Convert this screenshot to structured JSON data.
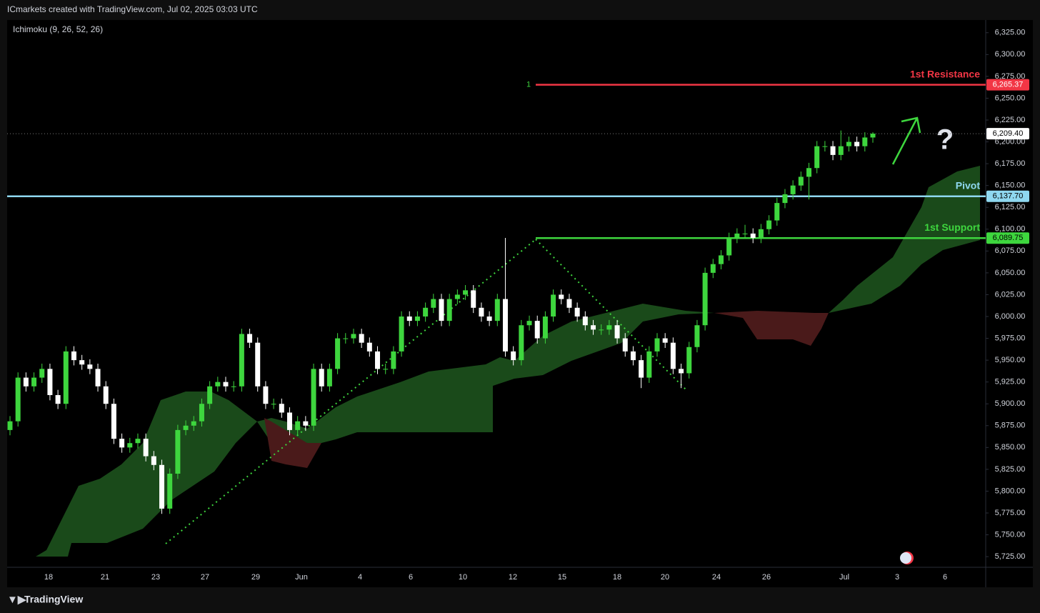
{
  "header": "ICmarkets created with TradingView.com, Jul 02, 2025 03:03 UTC",
  "footer": "TradingView",
  "chart_data": {
    "type": "candlestick",
    "indicator": "Ichimoku (9, 26, 52, 26)",
    "up_color": "#3ed63e",
    "down_color": "#ffffff",
    "ylim": [
      5712,
      6342
    ],
    "yticks": [
      {
        "value": 6325,
        "label": "6,325.00"
      },
      {
        "value": 6300,
        "label": "6,300.00"
      },
      {
        "value": 6275,
        "label": "6,275.00"
      },
      {
        "value": 6250,
        "label": "6,250.00"
      },
      {
        "value": 6225,
        "label": "6,225.00"
      },
      {
        "value": 6200,
        "label": "6,200.00"
      },
      {
        "value": 6175,
        "label": "6,175.00"
      },
      {
        "value": 6150,
        "label": "6,150.00"
      },
      {
        "value": 6125,
        "label": "6,125.00"
      },
      {
        "value": 6100,
        "label": "6,100.00"
      },
      {
        "value": 6075,
        "label": "6,075.00"
      },
      {
        "value": 6050,
        "label": "6,050.00"
      },
      {
        "value": 6025,
        "label": "6,025.00"
      },
      {
        "value": 6000,
        "label": "6,000.00"
      },
      {
        "value": 5975,
        "label": "5,975.00"
      },
      {
        "value": 5950,
        "label": "5,950.00"
      },
      {
        "value": 5925,
        "label": "5,925.00"
      },
      {
        "value": 5900,
        "label": "5,900.00"
      },
      {
        "value": 5875,
        "label": "5,875.00"
      },
      {
        "value": 5850,
        "label": "5,850.00"
      },
      {
        "value": 5825,
        "label": "5,825.00"
      },
      {
        "value": 5800,
        "label": "5,800.00"
      },
      {
        "value": 5775,
        "label": "5,775.00"
      },
      {
        "value": 5750,
        "label": "5,750.00"
      },
      {
        "value": 5725,
        "label": "5,725.00"
      }
    ],
    "xlabels": [
      "18",
      "21",
      "23",
      "27",
      "29",
      "Jun",
      "4",
      "6",
      "10",
      "12",
      "15",
      "18",
      "20",
      "24",
      "26",
      "Jul",
      "3",
      "6"
    ],
    "levels": [
      {
        "name": "1st Resistance",
        "value": 6265.37,
        "label": "6,265.37",
        "color": "#f23645",
        "marker": "1"
      },
      {
        "name": "Pivot",
        "value": 6137.7,
        "label": "6,137.70",
        "color": "#8fd8f0"
      },
      {
        "name": "1st Support",
        "value": 6089.75,
        "label": "6,089.75",
        "color": "#3ed63e"
      }
    ],
    "last": {
      "value": 6209.4,
      "label": "6,209.40"
    },
    "annotation": "?",
    "candles": [
      [
        5870,
        5886,
        5864,
        5880
      ],
      [
        5880,
        5936,
        5874,
        5930
      ],
      [
        5930,
        5936,
        5914,
        5920
      ],
      [
        5920,
        5936,
        5914,
        5930
      ],
      [
        5930,
        5946,
        5924,
        5940
      ],
      [
        5940,
        5946,
        5904,
        5910
      ],
      [
        5910,
        5916,
        5894,
        5900
      ],
      [
        5900,
        5966,
        5894,
        5960
      ],
      [
        5960,
        5966,
        5944,
        5950
      ],
      [
        5950,
        5956,
        5939,
        5945
      ],
      [
        5945,
        5951,
        5934,
        5940
      ],
      [
        5940,
        5946,
        5914,
        5920
      ],
      [
        5920,
        5926,
        5894,
        5900
      ],
      [
        5900,
        5906,
        5854,
        5860
      ],
      [
        5860,
        5866,
        5844,
        5850
      ],
      [
        5850,
        5861,
        5844,
        5855
      ],
      [
        5855,
        5866,
        5849,
        5860
      ],
      [
        5860,
        5866,
        5834,
        5840
      ],
      [
        5840,
        5846,
        5824,
        5830
      ],
      [
        5830,
        5836,
        5774,
        5780
      ],
      [
        5780,
        5826,
        5774,
        5820
      ],
      [
        5820,
        5876,
        5814,
        5870
      ],
      [
        5870,
        5881,
        5864,
        5875
      ],
      [
        5875,
        5886,
        5869,
        5880
      ],
      [
        5880,
        5906,
        5874,
        5900
      ],
      [
        5900,
        5926,
        5894,
        5920
      ],
      [
        5920,
        5931,
        5914,
        5925
      ],
      [
        5925,
        5931,
        5914,
        5920
      ],
      [
        5920,
        5926,
        5914,
        5920
      ],
      [
        5920,
        5986,
        5914,
        5980
      ],
      [
        5980,
        5986,
        5964,
        5970
      ],
      [
        5970,
        5976,
        5914,
        5920
      ],
      [
        5920,
        5926,
        5894,
        5900
      ],
      [
        5900,
        5906,
        5894,
        5900
      ],
      [
        5900,
        5906,
        5884,
        5890
      ],
      [
        5890,
        5896,
        5864,
        5870
      ],
      [
        5870,
        5886,
        5864,
        5880
      ],
      [
        5880,
        5886,
        5869,
        5875
      ],
      [
        5875,
        5946,
        5869,
        5940
      ],
      [
        5940,
        5946,
        5914,
        5920
      ],
      [
        5920,
        5946,
        5914,
        5940
      ],
      [
        5940,
        5981,
        5934,
        5975
      ],
      [
        5975,
        5981,
        5969,
        5975
      ],
      [
        5975,
        5986,
        5969,
        5980
      ],
      [
        5980,
        5986,
        5964,
        5970
      ],
      [
        5970,
        5976,
        5954,
        5960
      ],
      [
        5960,
        5966,
        5934,
        5940
      ],
      [
        5940,
        5946,
        5934,
        5940
      ],
      [
        5940,
        5966,
        5934,
        5960
      ],
      [
        5960,
        6006,
        5954,
        6000
      ],
      [
        6000,
        6006,
        5989,
        5995
      ],
      [
        5995,
        6006,
        5989,
        6000
      ],
      [
        6000,
        6016,
        5994,
        6010
      ],
      [
        6010,
        6026,
        6004,
        6020
      ],
      [
        6020,
        6026,
        5989,
        5995
      ],
      [
        5995,
        6026,
        5989,
        6020
      ],
      [
        6020,
        6031,
        6014,
        6025
      ],
      [
        6025,
        6036,
        6019,
        6030
      ],
      [
        6030,
        6036,
        6004,
        6010
      ],
      [
        6010,
        6016,
        5994,
        6000
      ],
      [
        6000,
        6006,
        5989,
        5995
      ],
      [
        5995,
        6026,
        5989,
        6020
      ],
      [
        6020,
        6090,
        5954,
        5960
      ],
      [
        5960,
        5966,
        5944,
        5950
      ],
      [
        5950,
        5996,
        5944,
        5990
      ],
      [
        5990,
        6001,
        5984,
        5995
      ],
      [
        5995,
        6001,
        5969,
        5975
      ],
      [
        5975,
        6006,
        5969,
        6000
      ],
      [
        6000,
        6031,
        5994,
        6025
      ],
      [
        6025,
        6031,
        6014,
        6020
      ],
      [
        6020,
        6026,
        6004,
        6010
      ],
      [
        6010,
        6016,
        5994,
        6000
      ],
      [
        6000,
        6006,
        5984,
        5990
      ],
      [
        5990,
        5996,
        5979,
        5985
      ],
      [
        5985,
        5991,
        5979,
        5985
      ],
      [
        5985,
        5996,
        5979,
        5990
      ],
      [
        5990,
        5996,
        5969,
        5975
      ],
      [
        5975,
        5981,
        5954,
        5960
      ],
      [
        5960,
        5966,
        5944,
        5950
      ],
      [
        5950,
        5956,
        5918,
        5930
      ],
      [
        5930,
        5966,
        5924,
        5960
      ],
      [
        5960,
        5981,
        5954,
        5975
      ],
      [
        5975,
        5981,
        5964,
        5970
      ],
      [
        5970,
        5976,
        5934,
        5940
      ],
      [
        5940,
        5946,
        5918,
        5935
      ],
      [
        5935,
        5971,
        5929,
        5965
      ],
      [
        5965,
        5996,
        5959,
        5990
      ],
      [
        5990,
        6056,
        5984,
        6050
      ],
      [
        6050,
        6066,
        6044,
        6060
      ],
      [
        6060,
        6076,
        6054,
        6070
      ],
      [
        6070,
        6096,
        6064,
        6090
      ],
      [
        6090,
        6101,
        6084,
        6095
      ],
      [
        6095,
        6105,
        6089,
        6095
      ],
      [
        6095,
        6101,
        6084,
        6090
      ],
      [
        6090,
        6106,
        6084,
        6100
      ],
      [
        6100,
        6116,
        6094,
        6110
      ],
      [
        6110,
        6136,
        6104,
        6130
      ],
      [
        6130,
        6146,
        6124,
        6140
      ],
      [
        6140,
        6156,
        6134,
        6150
      ],
      [
        6150,
        6166,
        6144,
        6160
      ],
      [
        6160,
        6176,
        6134,
        6170
      ],
      [
        6170,
        6201,
        6164,
        6195
      ],
      [
        6195,
        6201,
        6189,
        6195
      ],
      [
        6195,
        6201,
        6179,
        6185
      ],
      [
        6185,
        6213,
        6179,
        6195
      ],
      [
        6195,
        6206,
        6189,
        6200
      ],
      [
        6200,
        6206,
        6189,
        6195
      ],
      [
        6195,
        6211,
        6189,
        6205
      ],
      [
        6205,
        6211,
        6199,
        6209.4
      ]
    ]
  }
}
